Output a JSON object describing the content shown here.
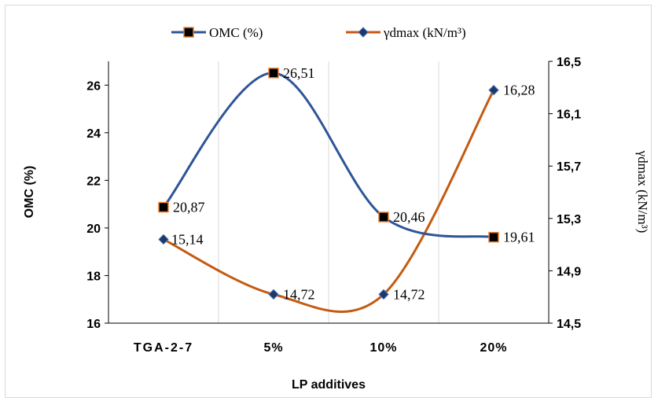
{
  "chart_data": {
    "type": "line",
    "categories": [
      "TGA-2-7",
      "5%",
      "10%",
      "20%"
    ],
    "xlabel": "LP additives",
    "ylabel": "OMC (%)",
    "y2label": "γdmax (kN/m³)",
    "ylim": [
      16,
      27
    ],
    "y2lim": [
      14.5,
      16.5
    ],
    "yticks": [
      "16",
      "18",
      "20",
      "22",
      "24",
      "26"
    ],
    "y2ticks": [
      "14,5",
      "14,9",
      "15,3",
      "15,7",
      "16,1",
      "16,5"
    ],
    "legend_position": "top",
    "grid": "vertical",
    "series": [
      {
        "name": "OMC (%)",
        "axis": "left",
        "color": "#2f5597",
        "marker": "square",
        "marker_fill": "#000000",
        "marker_edge": "#ed7d31",
        "values": [
          20.87,
          26.51,
          20.46,
          19.61
        ],
        "labels": [
          "20,87",
          "26,51",
          "20,46",
          "19,61"
        ]
      },
      {
        "name": "γdmax (kN/m³)",
        "axis": "right",
        "color": "#c55a11",
        "marker": "diamond",
        "marker_fill": "#1f3864",
        "marker_edge": "#4472c4",
        "values": [
          15.14,
          14.72,
          14.72,
          16.28
        ],
        "labels": [
          "15,14",
          "14,72",
          "14,72",
          "16,28"
        ]
      }
    ]
  }
}
